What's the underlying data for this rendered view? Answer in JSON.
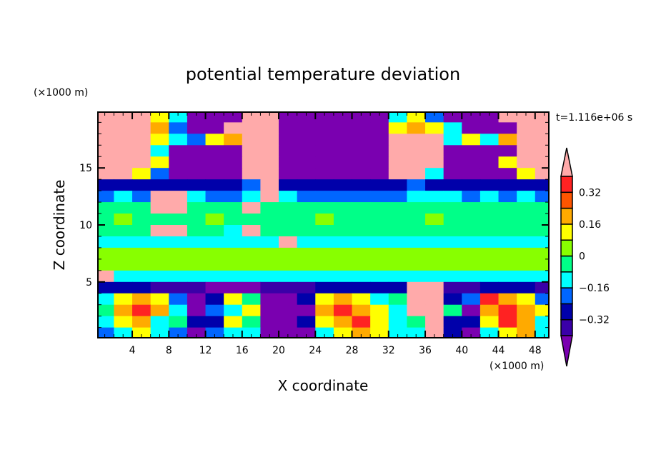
{
  "chart_data": {
    "type": "heatmap",
    "title": "potential temperature deviation",
    "xlabel": "X coordinate",
    "ylabel": "Z coordinate",
    "x_unit": "(×1000 m)",
    "y_unit": "(×1000 m)",
    "time_label": "t=1.116e+06 s",
    "xlim": [
      0.25,
      49.5
    ],
    "ylim": [
      0.1,
      19.9
    ],
    "xticks": [
      4,
      8,
      12,
      16,
      20,
      24,
      28,
      32,
      36,
      40,
      44,
      48
    ],
    "yticks": [
      5,
      10,
      15
    ],
    "x_centers": [
      1,
      3,
      5,
      7,
      9,
      11,
      13,
      15,
      17,
      19,
      21,
      23,
      25,
      27,
      29,
      31,
      33,
      35,
      37,
      39,
      41,
      43,
      45,
      47,
      49
    ],
    "z_centers": [
      19.5,
      18.5,
      17.5,
      16.5,
      15.5,
      14.5,
      13.5,
      12.5,
      11.5,
      10.5,
      9.5,
      8.5,
      7.5,
      6.5,
      5.5,
      4.5,
      3.5,
      2.5,
      1.5,
      0.5
    ],
    "values": [
      [
        0.45,
        0.45,
        0.45,
        0.12,
        -0.12,
        -0.45,
        -0.45,
        -0.45,
        0.45,
        0.45,
        -0.45,
        -0.45,
        -0.45,
        -0.45,
        -0.45,
        -0.45,
        -0.12,
        0.12,
        -0.2,
        -0.45,
        -0.45,
        -0.45,
        0.45,
        0.45,
        0.45
      ],
      [
        0.45,
        0.45,
        0.45,
        0.2,
        -0.2,
        -0.45,
        -0.45,
        0.45,
        0.45,
        0.45,
        -0.45,
        -0.45,
        -0.45,
        -0.45,
        -0.45,
        -0.45,
        0.12,
        0.2,
        0.12,
        -0.12,
        -0.45,
        -0.45,
        -0.45,
        0.45,
        0.45
      ],
      [
        0.45,
        0.45,
        0.45,
        0.12,
        -0.12,
        -0.2,
        0.12,
        0.2,
        0.45,
        0.45,
        -0.45,
        -0.45,
        -0.45,
        -0.45,
        -0.45,
        -0.45,
        0.45,
        0.45,
        0.45,
        -0.12,
        0.12,
        -0.12,
        0.2,
        0.45,
        0.45
      ],
      [
        0.45,
        0.45,
        0.45,
        -0.12,
        -0.45,
        -0.45,
        -0.45,
        -0.45,
        0.45,
        0.45,
        -0.45,
        -0.45,
        -0.45,
        -0.45,
        -0.45,
        -0.45,
        0.45,
        0.45,
        0.45,
        -0.45,
        -0.45,
        -0.45,
        -0.45,
        0.45,
        0.45
      ],
      [
        0.45,
        0.45,
        0.45,
        0.12,
        -0.45,
        -0.45,
        -0.45,
        -0.45,
        0.45,
        0.45,
        -0.45,
        -0.45,
        -0.45,
        -0.45,
        -0.45,
        -0.45,
        0.45,
        0.45,
        0.45,
        -0.45,
        -0.45,
        -0.45,
        0.12,
        0.45,
        0.45
      ],
      [
        0.45,
        0.45,
        0.12,
        -0.2,
        -0.45,
        -0.45,
        -0.45,
        -0.45,
        0.45,
        0.45,
        -0.45,
        -0.45,
        -0.45,
        -0.45,
        -0.45,
        -0.45,
        0.45,
        0.45,
        -0.12,
        -0.45,
        -0.45,
        -0.45,
        -0.45,
        0.12,
        0.45
      ],
      [
        -0.28,
        -0.28,
        -0.28,
        -0.28,
        -0.28,
        -0.28,
        -0.28,
        -0.28,
        -0.2,
        0.45,
        -0.28,
        -0.28,
        -0.28,
        -0.28,
        -0.28,
        -0.28,
        -0.28,
        -0.2,
        -0.28,
        -0.28,
        -0.28,
        -0.28,
        -0.28,
        -0.28,
        -0.28
      ],
      [
        -0.2,
        -0.12,
        -0.2,
        0.45,
        0.45,
        -0.12,
        -0.2,
        -0.2,
        -0.12,
        0.45,
        -0.12,
        -0.2,
        -0.2,
        -0.2,
        -0.2,
        -0.2,
        -0.2,
        -0.12,
        -0.12,
        -0.12,
        -0.2,
        -0.12,
        -0.2,
        -0.12,
        -0.2
      ],
      [
        -0.04,
        -0.04,
        -0.04,
        0.45,
        0.45,
        -0.04,
        -0.04,
        -0.04,
        0.45,
        -0.04,
        -0.04,
        -0.04,
        -0.04,
        -0.04,
        -0.04,
        -0.04,
        -0.04,
        -0.04,
        -0.04,
        -0.04,
        -0.04,
        -0.04,
        -0.04,
        -0.04,
        -0.04
      ],
      [
        -0.04,
        0.04,
        -0.04,
        -0.04,
        -0.04,
        -0.04,
        0.04,
        -0.04,
        -0.04,
        -0.04,
        -0.04,
        -0.04,
        0.04,
        -0.04,
        -0.04,
        -0.04,
        -0.04,
        -0.04,
        0.04,
        -0.04,
        -0.04,
        -0.04,
        -0.04,
        -0.04,
        -0.04
      ],
      [
        -0.04,
        -0.04,
        -0.04,
        0.45,
        0.45,
        -0.04,
        -0.04,
        -0.12,
        0.45,
        -0.04,
        -0.04,
        -0.04,
        -0.04,
        -0.04,
        -0.04,
        -0.04,
        -0.04,
        -0.04,
        -0.04,
        -0.04,
        -0.04,
        -0.04,
        -0.04,
        -0.04,
        -0.04
      ],
      [
        -0.12,
        -0.12,
        -0.12,
        -0.12,
        -0.12,
        -0.12,
        -0.12,
        -0.12,
        -0.12,
        -0.12,
        0.45,
        -0.12,
        -0.12,
        -0.12,
        -0.12,
        -0.12,
        -0.12,
        -0.12,
        -0.12,
        -0.12,
        -0.12,
        -0.12,
        -0.12,
        -0.12,
        -0.12
      ],
      [
        0.04,
        0.04,
        0.04,
        0.04,
        0.04,
        0.04,
        0.04,
        0.04,
        0.04,
        0.04,
        0.04,
        0.04,
        0.04,
        0.04,
        0.04,
        0.04,
        0.04,
        0.04,
        0.04,
        0.04,
        0.04,
        0.04,
        0.04,
        0.04,
        0.04
      ],
      [
        0.04,
        0.04,
        0.04,
        0.04,
        0.04,
        0.04,
        0.04,
        0.04,
        0.04,
        0.04,
        0.04,
        0.04,
        0.04,
        0.04,
        0.04,
        0.04,
        0.04,
        0.04,
        0.04,
        0.04,
        0.04,
        0.04,
        0.04,
        0.04,
        0.04
      ],
      [
        0.45,
        -0.12,
        -0.12,
        -0.12,
        -0.12,
        -0.12,
        -0.12,
        -0.12,
        -0.12,
        -0.12,
        -0.12,
        -0.12,
        -0.12,
        -0.12,
        -0.12,
        -0.12,
        -0.12,
        -0.12,
        -0.12,
        -0.12,
        -0.12,
        -0.12,
        -0.12,
        -0.12,
        -0.12
      ],
      [
        -0.28,
        -0.28,
        -0.28,
        -0.36,
        -0.36,
        -0.36,
        -0.45,
        -0.45,
        -0.45,
        -0.36,
        -0.36,
        -0.36,
        -0.28,
        -0.28,
        -0.28,
        -0.28,
        -0.28,
        0.45,
        0.45,
        -0.36,
        -0.36,
        -0.28,
        -0.28,
        -0.28,
        -0.36
      ],
      [
        -0.12,
        0.12,
        0.2,
        0.12,
        -0.2,
        -0.45,
        -0.28,
        0.12,
        -0.04,
        -0.45,
        -0.45,
        -0.28,
        0.12,
        0.2,
        0.12,
        -0.12,
        -0.04,
        0.45,
        0.45,
        -0.28,
        -0.2,
        0.36,
        0.2,
        0.12,
        -0.2
      ],
      [
        -0.04,
        0.2,
        0.36,
        0.2,
        -0.12,
        -0.45,
        -0.2,
        -0.12,
        0.12,
        -0.45,
        -0.45,
        -0.45,
        0.2,
        0.36,
        0.2,
        0.12,
        -0.12,
        0.45,
        0.45,
        -0.04,
        -0.45,
        0.2,
        0.36,
        0.2,
        0.12
      ],
      [
        -0.12,
        0.12,
        0.2,
        -0.12,
        -0.04,
        -0.28,
        -0.28,
        0.12,
        -0.04,
        -0.45,
        -0.45,
        -0.28,
        0.12,
        0.2,
        0.36,
        0.12,
        -0.12,
        -0.04,
        0.45,
        -0.28,
        -0.28,
        0.12,
        0.36,
        0.2,
        -0.12
      ],
      [
        -0.2,
        -0.12,
        0.12,
        -0.12,
        -0.2,
        -0.45,
        -0.2,
        -0.12,
        -0.12,
        -0.45,
        -0.45,
        -0.45,
        -0.12,
        0.12,
        0.2,
        0.12,
        -0.12,
        -0.12,
        0.45,
        -0.28,
        -0.45,
        -0.12,
        0.12,
        0.2,
        -0.12
      ]
    ],
    "colorbar": {
      "levels": [
        -0.4,
        -0.32,
        -0.24,
        -0.16,
        -0.08,
        0,
        0.08,
        0.16,
        0.24,
        0.32,
        0.4
      ],
      "colors": [
        "#7a00b0",
        "#3a00a8",
        "#0000aa",
        "#0066ff",
        "#00ffff",
        "#00ff88",
        "#88ff00",
        "#ffff00",
        "#ffaa00",
        "#ff5500",
        "#ff2222",
        "#ffaaaa"
      ],
      "tick_labels": [
        "0.32",
        "0.16",
        "0",
        "−0.16",
        "−0.32"
      ],
      "tick_values": [
        0.32,
        0.16,
        0,
        -0.16,
        -0.32
      ]
    }
  }
}
